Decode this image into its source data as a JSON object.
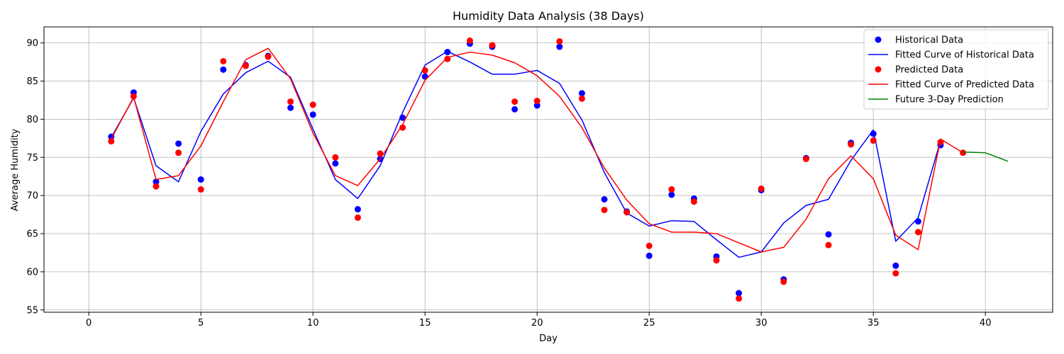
{
  "chart_data": {
    "type": "line",
    "title": "Humidity Data Analysis (38 Days)",
    "xlabel": "Day",
    "ylabel": "Average Humidity",
    "xlim": [
      -2,
      43
    ],
    "ylim": [
      54.7,
      92.1
    ],
    "xticks": [
      0,
      5,
      10,
      15,
      20,
      25,
      30,
      35,
      40
    ],
    "yticks": [
      55,
      60,
      65,
      70,
      75,
      80,
      85,
      90
    ],
    "grid": true,
    "legend": "top-right",
    "series": [
      {
        "name": "Historical Data",
        "kind": "scatter",
        "color": "#0000ff",
        "x": [
          1,
          2,
          3,
          4,
          5,
          6,
          7,
          8,
          9,
          10,
          11,
          12,
          13,
          14,
          15,
          16,
          17,
          18,
          19,
          20,
          21,
          22,
          23,
          24,
          25,
          26,
          27,
          28,
          29,
          30,
          31,
          32,
          33,
          34,
          35,
          36,
          37,
          38
        ],
        "y": [
          77.7,
          83.5,
          71.8,
          76.8,
          72.1,
          86.5,
          87.1,
          88.3,
          81.5,
          80.6,
          74.2,
          68.2,
          74.8,
          80.2,
          85.6,
          88.8,
          89.9,
          89.5,
          81.3,
          81.8,
          89.5,
          83.4,
          69.5,
          67.9,
          62.1,
          70.1,
          69.6,
          62.0,
          57.2,
          70.7,
          59.0,
          74.9,
          64.9,
          76.9,
          78.1,
          60.8,
          66.6,
          76.6
        ]
      },
      {
        "name": "Fitted Curve of Historical Data",
        "kind": "line",
        "color": "#0000ff",
        "x": [
          1,
          2,
          3,
          4,
          5,
          6,
          7,
          8,
          9,
          10,
          11,
          12,
          13,
          14,
          15,
          16,
          17,
          18,
          19,
          20,
          21,
          22,
          23,
          24,
          25,
          26,
          27,
          28,
          29,
          30,
          31,
          32,
          33,
          34,
          35,
          36,
          37,
          38
        ],
        "y": [
          77.6,
          82.8,
          73.9,
          71.8,
          78.4,
          83.3,
          86.1,
          87.6,
          85.5,
          78.7,
          72.1,
          69.6,
          73.9,
          80.9,
          87.1,
          88.9,
          87.5,
          85.9,
          85.9,
          86.4,
          84.7,
          79.9,
          73.0,
          67.7,
          66.0,
          66.7,
          66.6,
          64.2,
          61.9,
          62.6,
          66.4,
          68.7,
          69.5,
          74.6,
          78.6,
          64.0,
          67.1,
          77.2
        ]
      },
      {
        "name": "Predicted Data",
        "kind": "scatter",
        "color": "#ff0000",
        "x": [
          1,
          2,
          3,
          4,
          5,
          6,
          7,
          8,
          9,
          10,
          11,
          12,
          13,
          14,
          15,
          16,
          17,
          18,
          19,
          20,
          21,
          22,
          23,
          24,
          25,
          26,
          27,
          28,
          29,
          30,
          31,
          32,
          33,
          34,
          35,
          36,
          37,
          38,
          39
        ],
        "y": [
          77.1,
          83.0,
          71.2,
          75.6,
          70.8,
          87.6,
          87.0,
          88.2,
          82.3,
          81.9,
          75.0,
          67.1,
          75.5,
          78.9,
          86.4,
          87.9,
          90.3,
          89.7,
          82.3,
          82.4,
          90.2,
          82.7,
          68.1,
          67.8,
          63.4,
          70.8,
          69.2,
          61.5,
          56.5,
          70.9,
          58.7,
          74.8,
          63.5,
          76.7,
          77.2,
          59.8,
          65.2,
          77.0,
          75.6
        ]
      },
      {
        "name": "Fitted Curve of Predicted Data",
        "kind": "line",
        "color": "#ff0000",
        "x": [
          1,
          2,
          3,
          4,
          5,
          6,
          7,
          8,
          9,
          10,
          11,
          12,
          13,
          14,
          15,
          16,
          17,
          18,
          19,
          20,
          21,
          22,
          23,
          24,
          25,
          26,
          27,
          28,
          29,
          30,
          31,
          32,
          33,
          34,
          35,
          36,
          37,
          38,
          39
        ],
        "y": [
          77.4,
          82.9,
          72.1,
          72.6,
          76.5,
          82.3,
          87.8,
          89.3,
          85.3,
          78.2,
          72.6,
          71.3,
          74.8,
          79.3,
          85.1,
          88.1,
          88.8,
          88.4,
          87.4,
          85.7,
          83.0,
          78.9,
          73.6,
          69.4,
          66.3,
          65.2,
          65.2,
          65.0,
          63.8,
          62.6,
          63.2,
          66.9,
          72.2,
          75.2,
          72.2,
          64.8,
          62.9,
          77.4,
          75.6
        ]
      },
      {
        "name": "Future 3-Day Prediction",
        "kind": "line",
        "color": "#008000",
        "x": [
          39,
          40,
          41
        ],
        "y": [
          75.7,
          75.6,
          74.5
        ]
      }
    ]
  }
}
